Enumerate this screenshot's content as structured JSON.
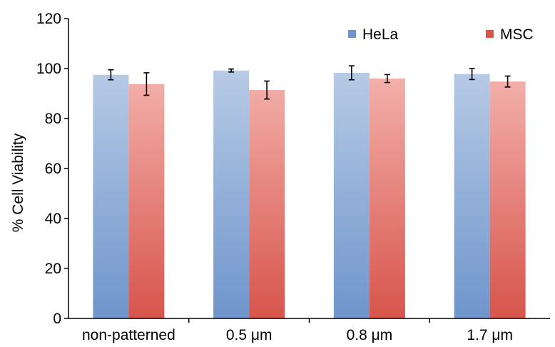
{
  "chart_data": {
    "type": "bar",
    "title": "",
    "xlabel": "",
    "ylabel": "% Cell Viability",
    "ylim": [
      0,
      120
    ],
    "yticks": [
      0,
      20,
      40,
      60,
      80,
      100,
      120
    ],
    "grid": false,
    "legend_position": "top-right",
    "categories": [
      "non-patterned",
      "0.5 μm",
      "0.8 μm",
      "1.7 μm"
    ],
    "series": [
      {
        "name": "HeLa",
        "color": "#6f95cc",
        "color_light": "#b8cbe6",
        "values": [
          97.5,
          99.2,
          98.3,
          97.8
        ],
        "errors": [
          2.0,
          0.6,
          2.8,
          2.2
        ]
      },
      {
        "name": "MSC",
        "color": "#d7554c",
        "color_light": "#f4b3ae",
        "values": [
          93.8,
          91.4,
          96.0,
          94.8
        ],
        "errors": [
          4.5,
          3.6,
          1.6,
          2.2
        ]
      }
    ]
  }
}
